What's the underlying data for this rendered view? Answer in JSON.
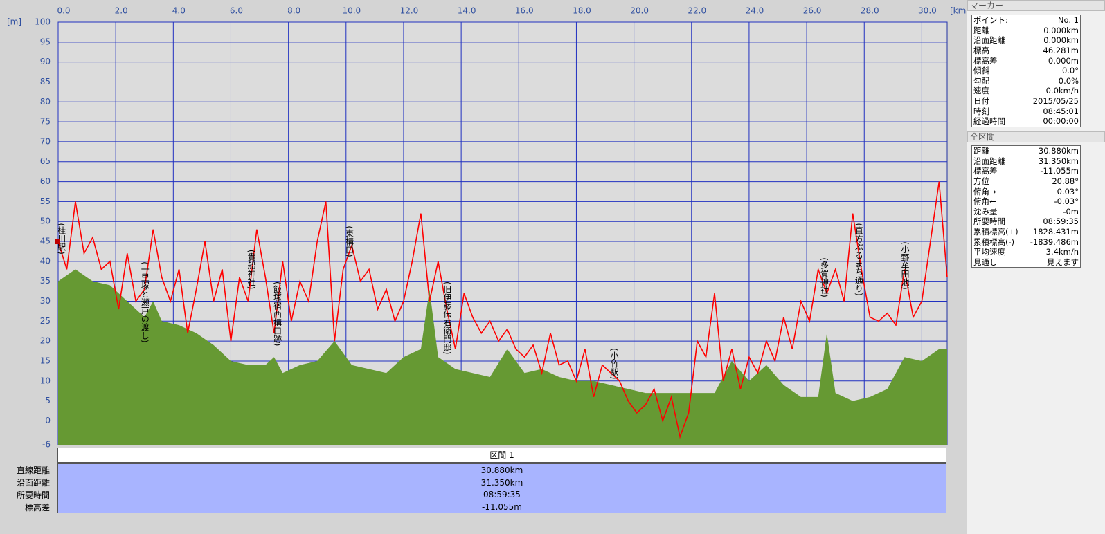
{
  "chart_data": {
    "type": "elevation-profile",
    "y_label": "[m]",
    "x_label": "[km]",
    "xlim": [
      0,
      30.88
    ],
    "ylim": [
      -6,
      100
    ],
    "xticks": [
      {
        "value": 0,
        "label": "0.0"
      },
      {
        "value": 2,
        "label": "2.0"
      },
      {
        "value": 4,
        "label": "4.0"
      },
      {
        "value": 6,
        "label": "6.0"
      },
      {
        "value": 8,
        "label": "8.0"
      },
      {
        "value": 10,
        "label": "10.0"
      },
      {
        "value": 12,
        "label": "12.0"
      },
      {
        "value": 14,
        "label": "14.0"
      },
      {
        "value": 16,
        "label": "16.0"
      },
      {
        "value": 18,
        "label": "18.0"
      },
      {
        "value": 20,
        "label": "20.0"
      },
      {
        "value": 22,
        "label": "22.0"
      },
      {
        "value": 24,
        "label": "24.0"
      },
      {
        "value": 26,
        "label": "26.0"
      },
      {
        "value": 28,
        "label": "28.0"
      },
      {
        "value": 30,
        "label": "30.0"
      }
    ],
    "yticks": [
      -6,
      0,
      5,
      10,
      15,
      20,
      25,
      30,
      35,
      40,
      45,
      50,
      55,
      60,
      65,
      70,
      75,
      80,
      85,
      90,
      95,
      100
    ],
    "grid": true,
    "series": [
      {
        "name": "GPS elevation",
        "color": "#ff0000",
        "x": [
          0,
          0.3,
          0.6,
          0.9,
          1.2,
          1.5,
          1.8,
          2.1,
          2.4,
          2.7,
          3.0,
          3.3,
          3.6,
          3.9,
          4.2,
          4.5,
          4.8,
          5.1,
          5.4,
          5.7,
          6.0,
          6.3,
          6.6,
          6.9,
          7.2,
          7.5,
          7.8,
          8.1,
          8.4,
          8.7,
          9.0,
          9.3,
          9.6,
          9.9,
          10.2,
          10.5,
          10.8,
          11.1,
          11.4,
          11.7,
          12.0,
          12.3,
          12.6,
          12.9,
          13.2,
          13.5,
          13.8,
          14.1,
          14.4,
          14.7,
          15.0,
          15.3,
          15.6,
          15.9,
          16.2,
          16.5,
          16.8,
          17.1,
          17.4,
          17.7,
          18.0,
          18.3,
          18.6,
          18.9,
          19.2,
          19.5,
          19.8,
          20.1,
          20.4,
          20.7,
          21.0,
          21.3,
          21.6,
          21.9,
          22.2,
          22.5,
          22.8,
          23.1,
          23.4,
          23.7,
          24.0,
          24.3,
          24.6,
          24.9,
          25.2,
          25.5,
          25.8,
          26.1,
          26.4,
          26.7,
          27.0,
          27.3,
          27.6,
          27.9,
          28.2,
          28.5,
          28.8,
          29.1,
          29.4,
          29.7,
          30.0,
          30.3,
          30.6,
          30.88
        ],
        "values": [
          45,
          38,
          55,
          42,
          46,
          38,
          40,
          28,
          42,
          30,
          33,
          48,
          36,
          30,
          38,
          22,
          33,
          45,
          30,
          38,
          20,
          36,
          30,
          48,
          36,
          22,
          40,
          25,
          35,
          30,
          45,
          55,
          20,
          38,
          44,
          35,
          38,
          28,
          33,
          25,
          30,
          40,
          52,
          30,
          40,
          28,
          18,
          32,
          26,
          22,
          25,
          20,
          23,
          18,
          16,
          19,
          12,
          22,
          14,
          15,
          10,
          18,
          6,
          14,
          12,
          10,
          5,
          2,
          4,
          8,
          0,
          6,
          -4,
          2,
          20,
          16,
          32,
          10,
          18,
          8,
          16,
          12,
          20,
          15,
          26,
          18,
          30,
          25,
          38,
          32,
          38,
          30,
          52,
          38,
          26,
          25,
          27,
          24,
          38,
          26,
          30,
          45,
          60,
          36
        ]
      },
      {
        "name": "Terrain",
        "color": "#669933",
        "x": [
          0,
          0.6,
          1.2,
          1.8,
          2.4,
          3.0,
          3.3,
          3.6,
          4.2,
          4.8,
          5.4,
          6.0,
          6.6,
          7.2,
          7.5,
          7.8,
          8.4,
          9.0,
          9.6,
          10.2,
          10.8,
          11.4,
          12.0,
          12.6,
          12.9,
          13.2,
          13.8,
          14.4,
          15.0,
          15.6,
          16.2,
          16.8,
          17.4,
          18.0,
          18.6,
          19.2,
          19.8,
          20.4,
          21.0,
          21.6,
          22.2,
          22.8,
          23.4,
          24.0,
          24.6,
          25.2,
          25.8,
          26.4,
          26.7,
          27.0,
          27.6,
          28.2,
          28.8,
          29.4,
          30.0,
          30.6,
          30.88
        ],
        "values": [
          35,
          38,
          35,
          34,
          30,
          26,
          30,
          25,
          24,
          22,
          19,
          15,
          14,
          14,
          16,
          12,
          14,
          15,
          20,
          14,
          13,
          12,
          16,
          18,
          33,
          16,
          13,
          12,
          11,
          18,
          12,
          13,
          11,
          10,
          10,
          9,
          8,
          7,
          7,
          7,
          7,
          7,
          15,
          10,
          14,
          9,
          6,
          6,
          22,
          7,
          5,
          6,
          8,
          16,
          15,
          18,
          18
        ]
      }
    ],
    "annotations": [
      {
        "text": "(桂川駅)",
        "x": 0.1
      },
      {
        "text": "(一里塚と瀬戸の渡し)",
        "x": 3.0
      },
      {
        "text": "(貴船神社)",
        "x": 6.7
      },
      {
        "text": "(飯塚宿西構口跡)",
        "x": 7.6
      },
      {
        "text": "(東構口)",
        "x": 10.1
      },
      {
        "text": "(旧伊藤伝右衛門邸)",
        "x": 13.5
      },
      {
        "text": "(小竹駅)",
        "x": 19.3
      },
      {
        "text": "(多賀神社)",
        "x": 26.6
      },
      {
        "text": "(直方ぶるまち通り)",
        "x": 27.8
      },
      {
        "text": "(小野牟田池)",
        "x": 29.4
      }
    ]
  },
  "marker_panel": {
    "title": "マーカー",
    "rows": [
      [
        "ポイント:",
        "No. 1"
      ],
      [
        "距離",
        "0.000km"
      ],
      [
        "沿面距離",
        "0.000km"
      ],
      [
        "標高",
        "46.281m"
      ],
      [
        "標高差",
        "0.000m"
      ],
      [
        "傾斜",
        "0.0°"
      ],
      [
        "勾配",
        "0.0%"
      ],
      [
        "速度",
        "0.0km/h"
      ],
      [
        "日付",
        "2015/05/25"
      ],
      [
        "時刻",
        "08:45:01"
      ],
      [
        "経過時間",
        "00:00:00"
      ]
    ]
  },
  "total_panel": {
    "title": "全区間",
    "rows": [
      [
        "距離",
        "30.880km"
      ],
      [
        "沿面距離",
        "31.350km"
      ],
      [
        "標高差",
        "-11.055m"
      ],
      [
        "方位",
        "20.88°"
      ],
      [
        "俯角→",
        "0.03°"
      ],
      [
        "俯角←",
        "-0.03°"
      ],
      [
        "沈み量",
        "-0m"
      ],
      [
        "所要時間",
        "08:59:35"
      ],
      [
        "累積標高(+)",
        "1828.431m"
      ],
      [
        "累積標高(-)",
        "-1839.486m"
      ],
      [
        "平均速度",
        "3.4km/h"
      ],
      [
        "見通し",
        "見えます"
      ]
    ]
  },
  "section_table": {
    "header": "区間 1",
    "rows": [
      [
        "直線距離",
        "30.880km"
      ],
      [
        "沿面距離",
        "31.350km"
      ],
      [
        "所要時間",
        "08:59:35"
      ],
      [
        "標高差",
        "-11.055m"
      ]
    ]
  }
}
